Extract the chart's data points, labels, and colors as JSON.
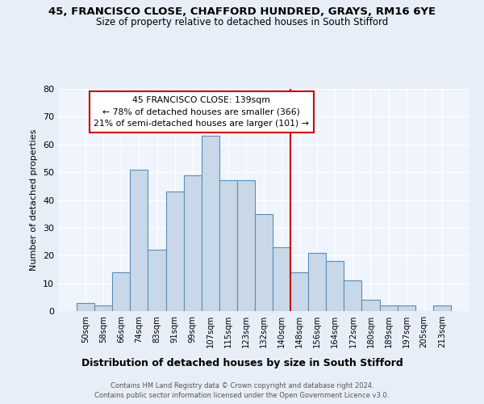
{
  "title1": "45, FRANCISCO CLOSE, CHAFFORD HUNDRED, GRAYS, RM16 6YE",
  "title2": "Size of property relative to detached houses in South Stifford",
  "xlabel": "Distribution of detached houses by size in South Stifford",
  "ylabel": "Number of detached properties",
  "footnote1": "Contains HM Land Registry data © Crown copyright and database right 2024.",
  "footnote2": "Contains public sector information licensed under the Open Government Licence v3.0.",
  "bar_labels": [
    "50sqm",
    "58sqm",
    "66sqm",
    "74sqm",
    "83sqm",
    "91sqm",
    "99sqm",
    "107sqm",
    "115sqm",
    "123sqm",
    "132sqm",
    "140sqm",
    "148sqm",
    "156sqm",
    "164sqm",
    "172sqm",
    "180sqm",
    "189sqm",
    "197sqm",
    "205sqm",
    "213sqm"
  ],
  "bar_values": [
    3,
    2,
    14,
    51,
    22,
    43,
    49,
    63,
    47,
    47,
    35,
    23,
    14,
    21,
    18,
    11,
    4,
    2,
    2,
    0,
    2
  ],
  "bar_color": "#c8d8e8",
  "bar_edge_color": "#5b8db8",
  "vline_x": 11.5,
  "vline_color": "#cc0000",
  "annotation_title": "45 FRANCISCO CLOSE: 139sqm",
  "annotation_line1": "← 78% of detached houses are smaller (366)",
  "annotation_line2": "21% of semi-detached houses are larger (101) →",
  "annotation_box_color": "#cc0000",
  "ylim": [
    0,
    80
  ],
  "yticks": [
    0,
    10,
    20,
    30,
    40,
    50,
    60,
    70,
    80
  ],
  "bg_color": "#e8eef8",
  "plot_bg_color": "#f0f4fc"
}
